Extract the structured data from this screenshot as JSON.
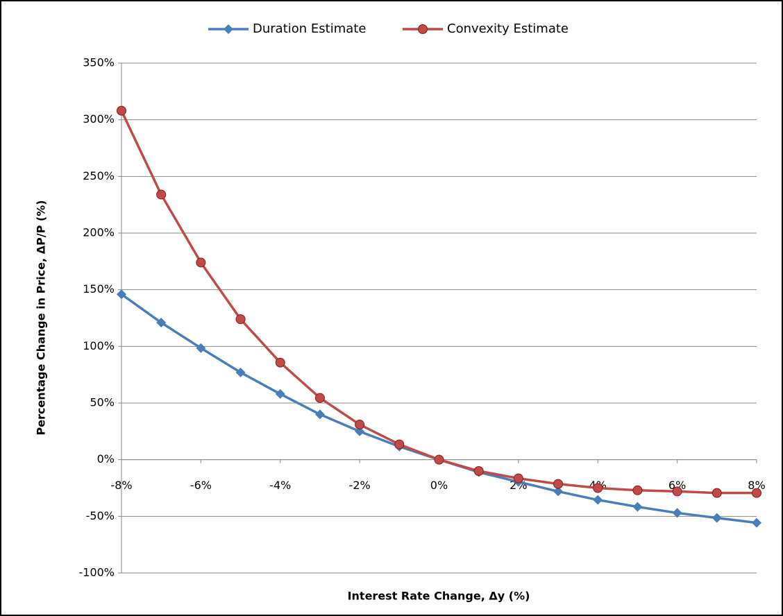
{
  "chart_data": {
    "type": "line",
    "x_label": "Interest Rate Change, Δy (%)",
    "y_label": "Percentage Change in Price, ΔP/P (%)",
    "x": [
      -8,
      -7,
      -6,
      -5,
      -4,
      -3,
      -2,
      -1,
      0,
      1,
      2,
      3,
      4,
      5,
      6,
      7,
      8
    ],
    "series": [
      {
        "name": "Duration Estimate",
        "color": "#4a7ebb",
        "marker": "diamond",
        "values": [
          146,
          121,
          98.5,
          77,
          58,
          40,
          25,
          11.6,
          0,
          -11,
          -19.6,
          -28,
          -35.5,
          -41.6,
          -47,
          -51.4,
          -55.7
        ]
      },
      {
        "name": "Convexity Estimate",
        "color": "#be4b48",
        "marker": "circle",
        "values": [
          308,
          234,
          174,
          124,
          85.7,
          54.5,
          31,
          13.5,
          0,
          -10,
          -16.5,
          -21.4,
          -25,
          -27,
          -28,
          -29.4,
          -29.4
        ]
      }
    ],
    "xlim": [
      -8,
      8
    ],
    "xticks": [
      {
        "value": -8,
        "label": "-8%"
      },
      {
        "value": -6,
        "label": "-6%"
      },
      {
        "value": -4,
        "label": "-4%"
      },
      {
        "value": -2,
        "label": "-2%"
      },
      {
        "value": 0,
        "label": "0%"
      },
      {
        "value": 2,
        "label": "2%"
      },
      {
        "value": 4,
        "label": "4%"
      },
      {
        "value": 6,
        "label": "6%"
      },
      {
        "value": 8,
        "label": "8%"
      }
    ],
    "ylim": [
      -100,
      350
    ],
    "yticks": [
      {
        "value": -100,
        "label": "-100%"
      },
      {
        "value": -50,
        "label": "-50%"
      },
      {
        "value": 0,
        "label": "0%"
      },
      {
        "value": 50,
        "label": "50%"
      },
      {
        "value": 100,
        "label": "100%"
      },
      {
        "value": 150,
        "label": "150%"
      },
      {
        "value": 200,
        "label": "200%"
      },
      {
        "value": 250,
        "label": "250%"
      },
      {
        "value": 300,
        "label": "300%"
      },
      {
        "value": 350,
        "label": "350%"
      }
    ],
    "grid": true,
    "legend": "top"
  }
}
